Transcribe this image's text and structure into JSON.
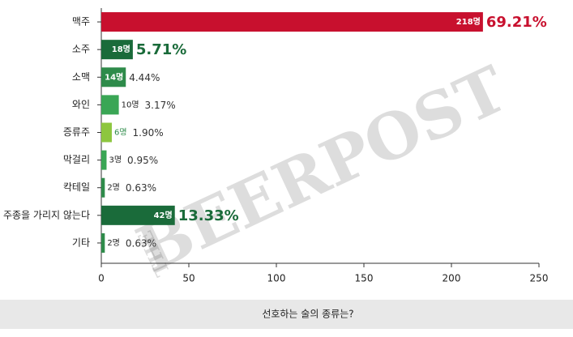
{
  "chart_data": {
    "type": "hbar",
    "xlabel": "선호하는 술의 종류는?",
    "watermark": "BEERPOST",
    "watermark_small": "THE",
    "categories": [
      "맥주",
      "소주",
      "소맥",
      "와인",
      "증류주",
      "막걸리",
      "칵테일",
      "주종을 가리지 않는다",
      "기타"
    ],
    "values": [
      218,
      18,
      14,
      10,
      6,
      3,
      2,
      42,
      2
    ],
    "value_labels": [
      "218명",
      "18명",
      "14명",
      "10명",
      "6명",
      "3명",
      "2명",
      "42명",
      "2명"
    ],
    "colors": [
      "#c8102e",
      "#1a6b3a",
      "#2e8b4a",
      "#3aa655",
      "#8dc63f",
      "#3aa655",
      "#2e8b4a",
      "#1a6b3a",
      "#2e8b4a"
    ],
    "share": {
      "values": [
        69.21,
        5.71,
        4.44,
        3.17,
        1.9,
        0.95,
        0.63,
        13.33,
        0.63
      ],
      "value_labels": [
        "69.21%",
        "5.71%",
        "4.44%",
        "3.17%",
        "1.90%",
        "0.95%",
        "0.63%",
        "13.33%",
        "0.63%"
      ],
      "emphasized": [
        true,
        true,
        false,
        false,
        false,
        false,
        false,
        true,
        false
      ]
    },
    "xlim": [
      0,
      250
    ],
    "xticks": [
      0,
      50,
      100,
      150,
      200,
      250
    ]
  }
}
